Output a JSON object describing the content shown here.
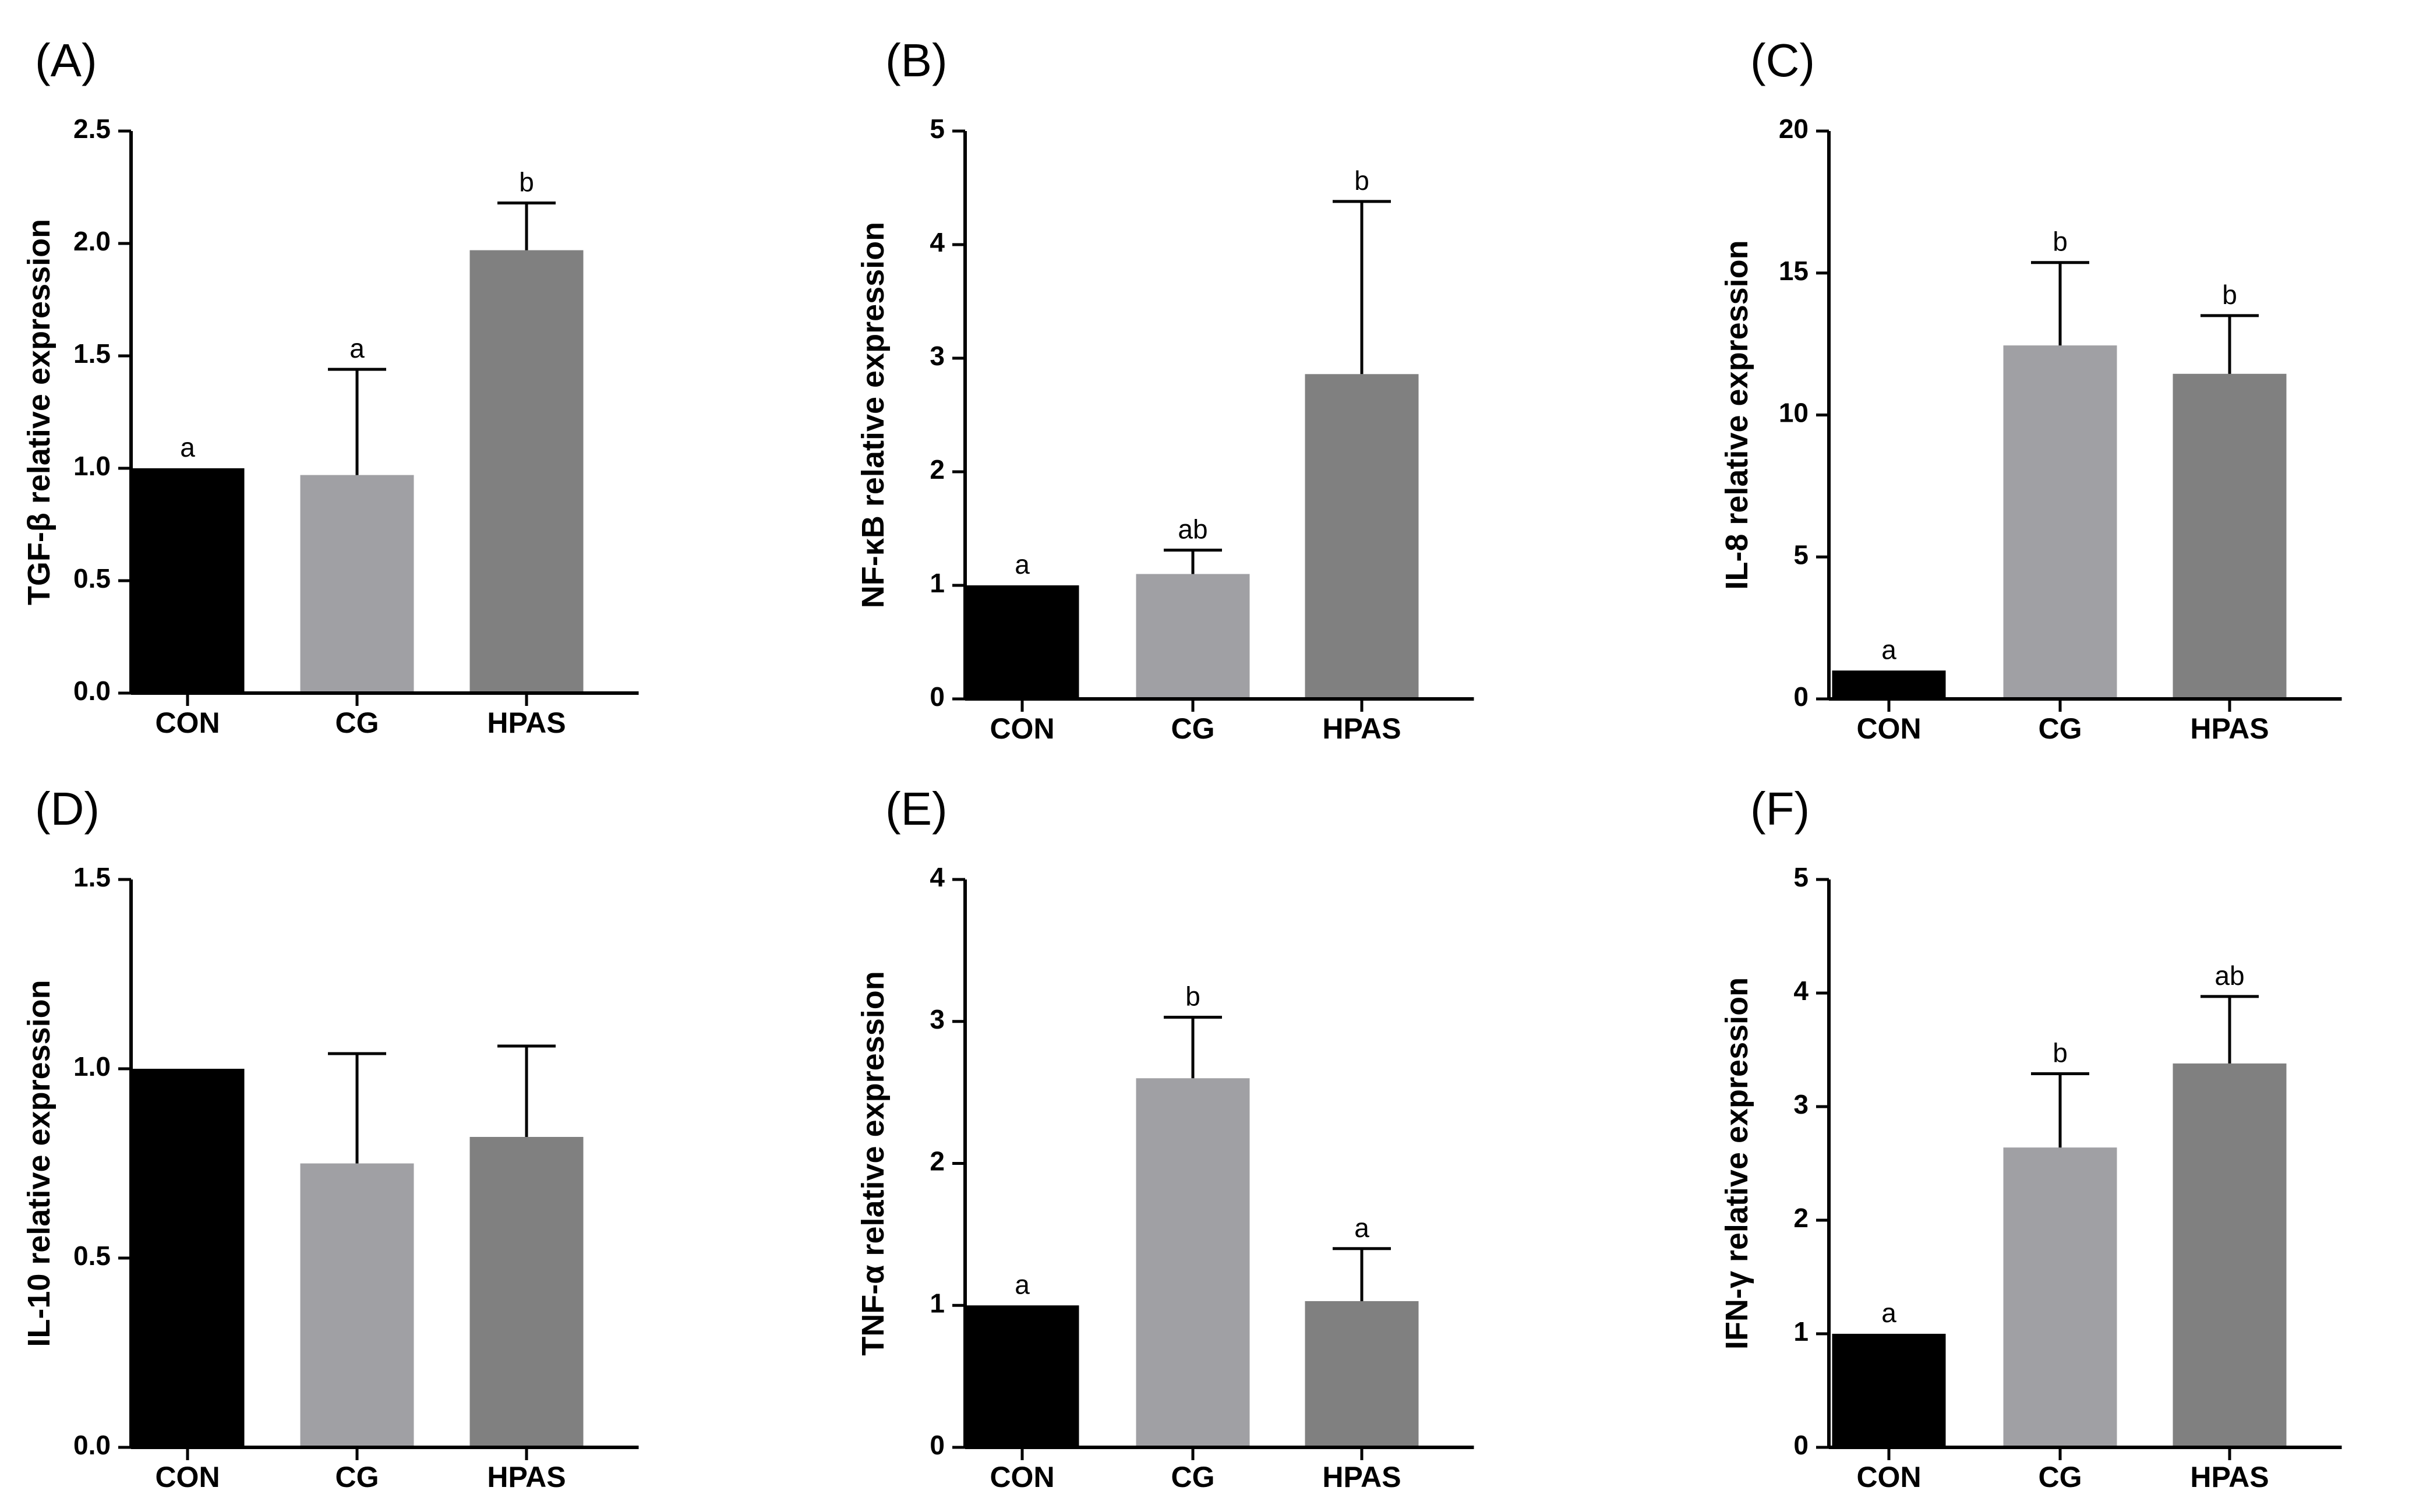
{
  "colors": {
    "CON": "#000000",
    "CG": "#a0a0a4",
    "HPAS": "#808080"
  },
  "chart_data": [
    {
      "type": "bar",
      "panel": "(A)",
      "ylabel": "TGF-β relative expression",
      "categories": [
        "CON",
        "CG",
        "HPAS"
      ],
      "values": [
        1.0,
        0.97,
        1.97
      ],
      "errors": [
        0,
        0.47,
        0.21
      ],
      "significance": [
        "a",
        "a",
        "b"
      ],
      "ylim": [
        0,
        2.5
      ],
      "yticks": [
        "0.0",
        "0.5",
        "1.0",
        "1.5",
        "2.0",
        "2.5"
      ]
    },
    {
      "type": "bar",
      "panel": "(B)",
      "ylabel": "NF-κB relative expression",
      "categories": [
        "CON",
        "CG",
        "HPAS"
      ],
      "values": [
        1.0,
        1.1,
        2.86
      ],
      "errors": [
        0,
        0.21,
        1.52
      ],
      "significance": [
        "a",
        "ab",
        "b"
      ],
      "ylim": [
        0,
        5
      ],
      "yticks": [
        "0",
        "1",
        "2",
        "3",
        "4",
        "5"
      ]
    },
    {
      "type": "bar",
      "panel": "(C)",
      "ylabel": "IL-8 relative expression",
      "categories": [
        "CON",
        "CG",
        "HPAS"
      ],
      "values": [
        1.0,
        12.45,
        11.45
      ],
      "errors": [
        0,
        2.92,
        2.05
      ],
      "significance": [
        "a",
        "b",
        "b"
      ],
      "ylim": [
        0,
        20
      ],
      "yticks": [
        "0",
        "5",
        "10",
        "15",
        "20"
      ]
    },
    {
      "type": "bar",
      "panel": "(D)",
      "ylabel": "IL-10 relative expression",
      "categories": [
        "CON",
        "CG",
        "HPAS"
      ],
      "values": [
        1.0,
        0.75,
        0.82
      ],
      "errors": [
        0,
        0.29,
        0.24
      ],
      "significance": [
        "",
        "",
        ""
      ],
      "ylim": [
        0,
        1.5
      ],
      "yticks": [
        "0.0",
        "0.5",
        "1.0",
        "1.5"
      ]
    },
    {
      "type": "bar",
      "panel": "(E)",
      "ylabel": "TNF-α relative expression",
      "categories": [
        "CON",
        "CG",
        "HPAS"
      ],
      "values": [
        1.0,
        2.6,
        1.03
      ],
      "errors": [
        0,
        0.43,
        0.37
      ],
      "significance": [
        "a",
        "b",
        "a"
      ],
      "ylim": [
        0,
        4
      ],
      "yticks": [
        "0",
        "1",
        "2",
        "3",
        "4"
      ]
    },
    {
      "type": "bar",
      "panel": "(F)",
      "ylabel": "IFN-γ relative expression",
      "categories": [
        "CON",
        "CG",
        "HPAS"
      ],
      "values": [
        1.0,
        2.64,
        3.38
      ],
      "errors": [
        0,
        0.65,
        0.59
      ],
      "significance": [
        "a",
        "b",
        "ab"
      ],
      "ylim": [
        0,
        5
      ],
      "yticks": [
        "0",
        "1",
        "2",
        "3",
        "4",
        "5"
      ]
    }
  ]
}
